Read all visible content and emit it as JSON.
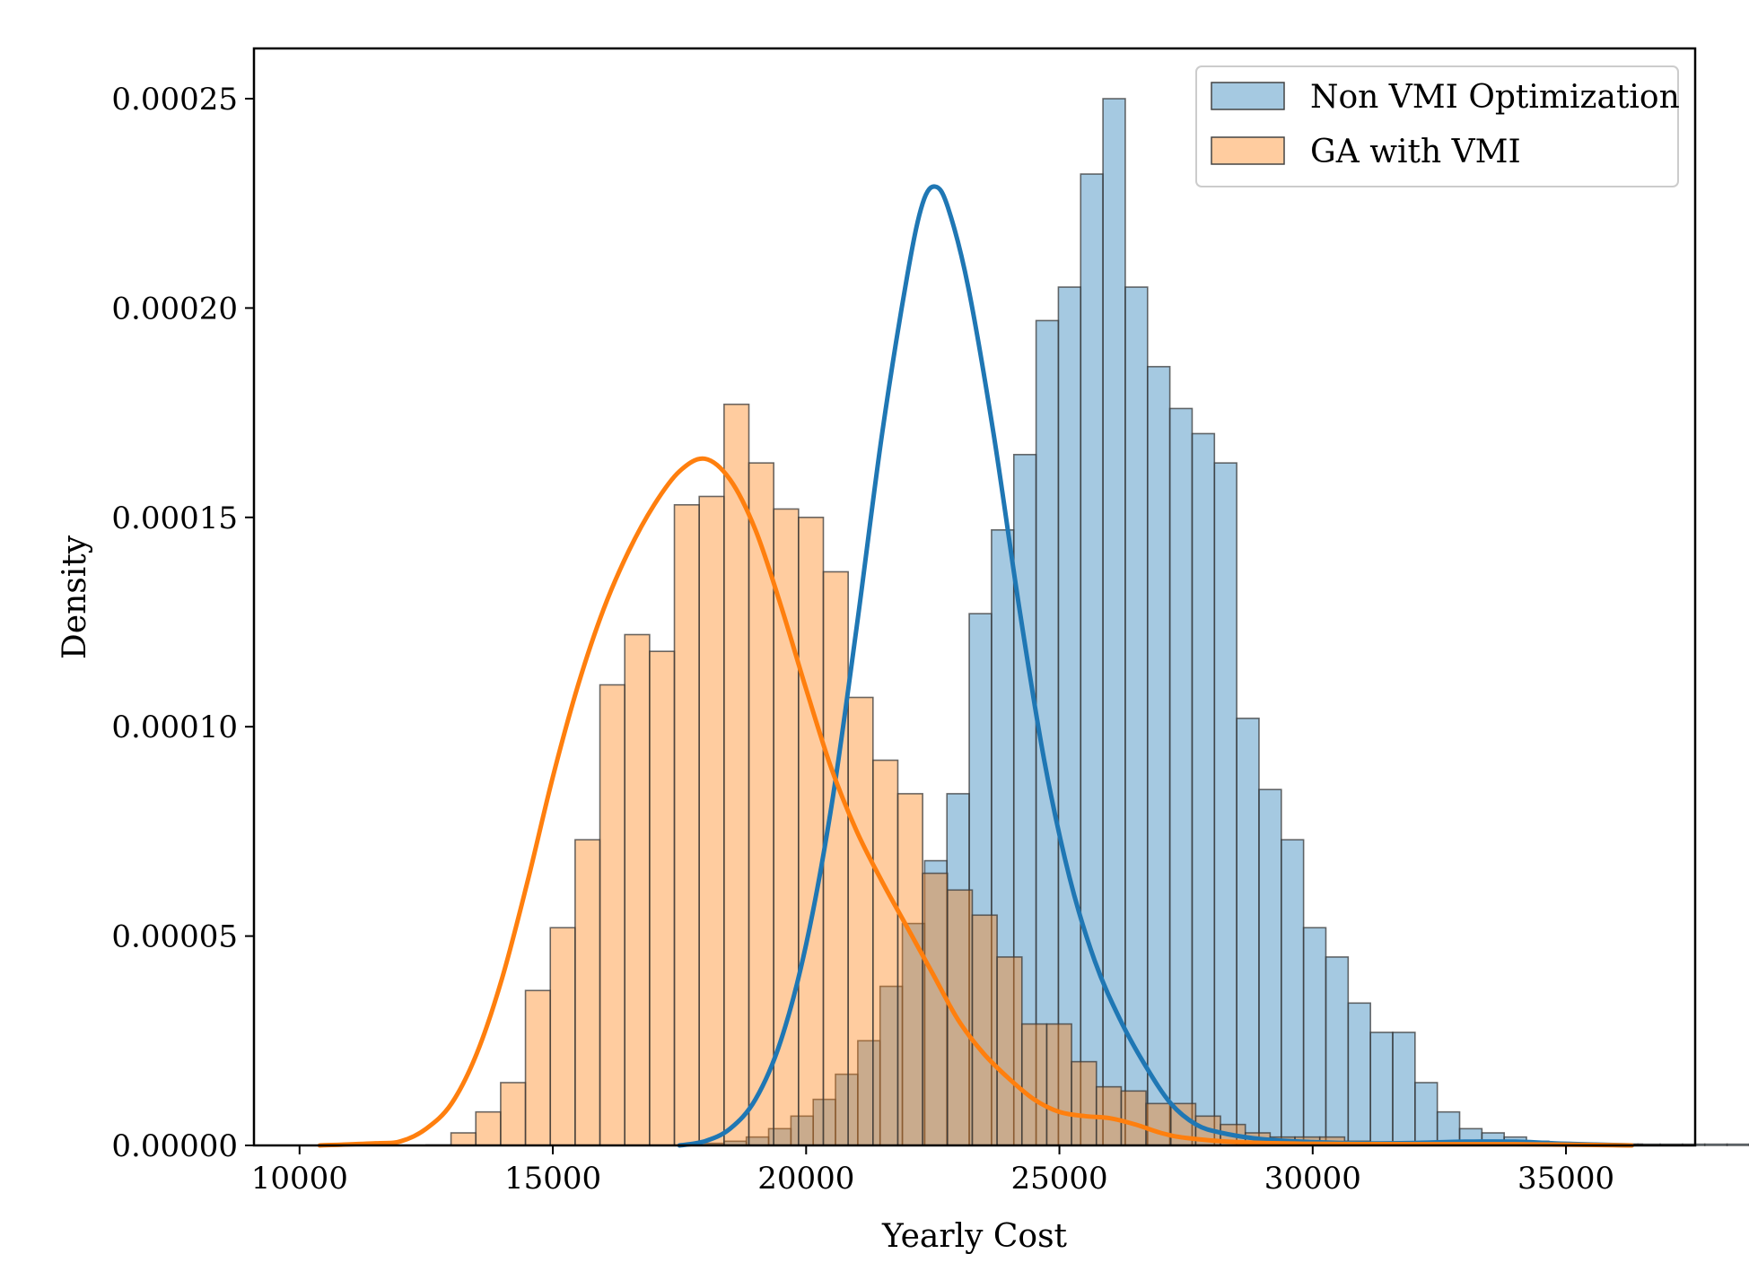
{
  "chart_data": {
    "type": "histogram",
    "xlabel": "Yearly Cost",
    "ylabel": "Density",
    "xlim": [
      9100,
      37550
    ],
    "ylim": [
      0,
      0.000262
    ],
    "xticks": [
      10000,
      15000,
      20000,
      25000,
      30000,
      35000
    ],
    "yticks": [
      0,
      5e-05,
      0.0001,
      0.00015,
      0.0002,
      0.00025
    ],
    "ytick_labels": [
      "0.00000",
      "0.00005",
      "0.00010",
      "0.00015",
      "0.00020",
      "0.00025"
    ],
    "legend_position": "top-right",
    "grid": false,
    "series": [
      {
        "name": "Non VMI Optimization",
        "color": "#1f77b4",
        "bin_start": 17500,
        "bin_width": 440,
        "bars": [
          1e-07,
          5e-07,
          1e-06,
          2e-06,
          4e-06,
          7e-06,
          1.1e-05,
          1.7e-05,
          2.5e-05,
          3.8e-05,
          5.3e-05,
          6.8e-05,
          8.4e-05,
          0.000127,
          0.000147,
          0.000165,
          0.000197,
          0.000205,
          0.000232,
          0.00025,
          0.000205,
          0.000186,
          0.000176,
          0.00017,
          0.000163,
          0.000102,
          8.5e-05,
          7.3e-05,
          5.2e-05,
          4.5e-05,
          3.4e-05,
          2.7e-05,
          2.7e-05,
          1.5e-05,
          8e-06,
          4e-06,
          3e-06,
          2e-06,
          1e-06,
          7e-07,
          5e-07,
          3e-07,
          3e-07,
          3e-07,
          3e-07,
          3e-07,
          3e-07,
          3e-07,
          3e-07,
          3e-07,
          3e-07,
          3e-07,
          3e-07,
          3e-07,
          9e-07,
          9e-07,
          9e-07,
          9e-07,
          3e-07,
          3e-07,
          3e-07,
          3e-07,
          3e-07,
          3e-07
        ],
        "kde": [
          [
            17500,
            0
          ],
          [
            18000,
            1e-06
          ],
          [
            18500,
            4e-06
          ],
          [
            19000,
            1.1e-05
          ],
          [
            19500,
            2.5e-05
          ],
          [
            20000,
            4.8e-05
          ],
          [
            20500,
            8.1e-05
          ],
          [
            21000,
            0.000124
          ],
          [
            21500,
            0.00017
          ],
          [
            22000,
            0.000208
          ],
          [
            22300,
            0.000225
          ],
          [
            22550,
            0.000229
          ],
          [
            22800,
            0.000224
          ],
          [
            23200,
            0.000205
          ],
          [
            23700,
            0.00017
          ],
          [
            24200,
            0.000129
          ],
          [
            24700,
            9.2e-05
          ],
          [
            25200,
            6.4e-05
          ],
          [
            25700,
            4.4e-05
          ],
          [
            26200,
            3e-05
          ],
          [
            26700,
            1.9e-05
          ],
          [
            27200,
            1e-05
          ],
          [
            27700,
            5e-06
          ],
          [
            28200,
            3e-06
          ],
          [
            29000,
            1.5e-06
          ],
          [
            30000,
            8e-07
          ],
          [
            31000,
            5e-07
          ],
          [
            32000,
            6e-07
          ],
          [
            33000,
            9e-07
          ],
          [
            34000,
            9e-07
          ],
          [
            35000,
            4e-07
          ],
          [
            36300,
            0
          ]
        ]
      },
      {
        "name": "GA with VMI",
        "color": "#ff7f0e",
        "bin_start": 12500,
        "bin_width": 490,
        "bars": [
          1e-07,
          3e-06,
          8e-06,
          1.5e-05,
          3.7e-05,
          5.2e-05,
          7.3e-05,
          0.00011,
          0.000122,
          0.000118,
          0.000153,
          0.000155,
          0.000177,
          0.000163,
          0.000152,
          0.00015,
          0.000137,
          0.000107,
          9.2e-05,
          8.4e-05,
          6.5e-05,
          6.1e-05,
          5.5e-05,
          4.5e-05,
          2.9e-05,
          2.9e-05,
          2e-05,
          1.4e-05,
          1.3e-05,
          1e-05,
          1e-05,
          7e-06,
          5e-06,
          3e-06,
          2e-06,
          2e-06,
          2e-06,
          1e-06,
          7e-07,
          7e-07,
          5e-07,
          3e-07,
          3e-07,
          3e-07,
          3e-07,
          3e-07,
          3e-07,
          3e-07,
          3e-07
        ],
        "kde": [
          [
            10400,
            0
          ],
          [
            11500,
            5e-07
          ],
          [
            12000,
            1e-06
          ],
          [
            12500,
            4e-06
          ],
          [
            13000,
            1e-05
          ],
          [
            13500,
            2.2e-05
          ],
          [
            14000,
            4e-05
          ],
          [
            14500,
            6.3e-05
          ],
          [
            15000,
            8.8e-05
          ],
          [
            15500,
            0.00011
          ],
          [
            16000,
            0.000128
          ],
          [
            16500,
            0.000142
          ],
          [
            17000,
            0.000153
          ],
          [
            17500,
            0.000161
          ],
          [
            18000,
            0.000164
          ],
          [
            18500,
            0.000159
          ],
          [
            19000,
            0.000147
          ],
          [
            19500,
            0.000129
          ],
          [
            20000,
            0.000109
          ],
          [
            20500,
            9e-05
          ],
          [
            21000,
            7.5e-05
          ],
          [
            21500,
            6.3e-05
          ],
          [
            22000,
            5.2e-05
          ],
          [
            22500,
            4.1e-05
          ],
          [
            23000,
            3e-05
          ],
          [
            23500,
            2.2e-05
          ],
          [
            24000,
            1.6e-05
          ],
          [
            24500,
            1.1e-05
          ],
          [
            25000,
            8e-06
          ],
          [
            25500,
            7e-06
          ],
          [
            26000,
            6.5e-06
          ],
          [
            26500,
            5e-06
          ],
          [
            27000,
            3e-06
          ],
          [
            27500,
            1.8e-06
          ],
          [
            28500,
            8e-07
          ],
          [
            30000,
            4e-07
          ],
          [
            32000,
            3e-07
          ],
          [
            34000,
            3e-07
          ],
          [
            36300,
            0
          ]
        ]
      }
    ]
  }
}
